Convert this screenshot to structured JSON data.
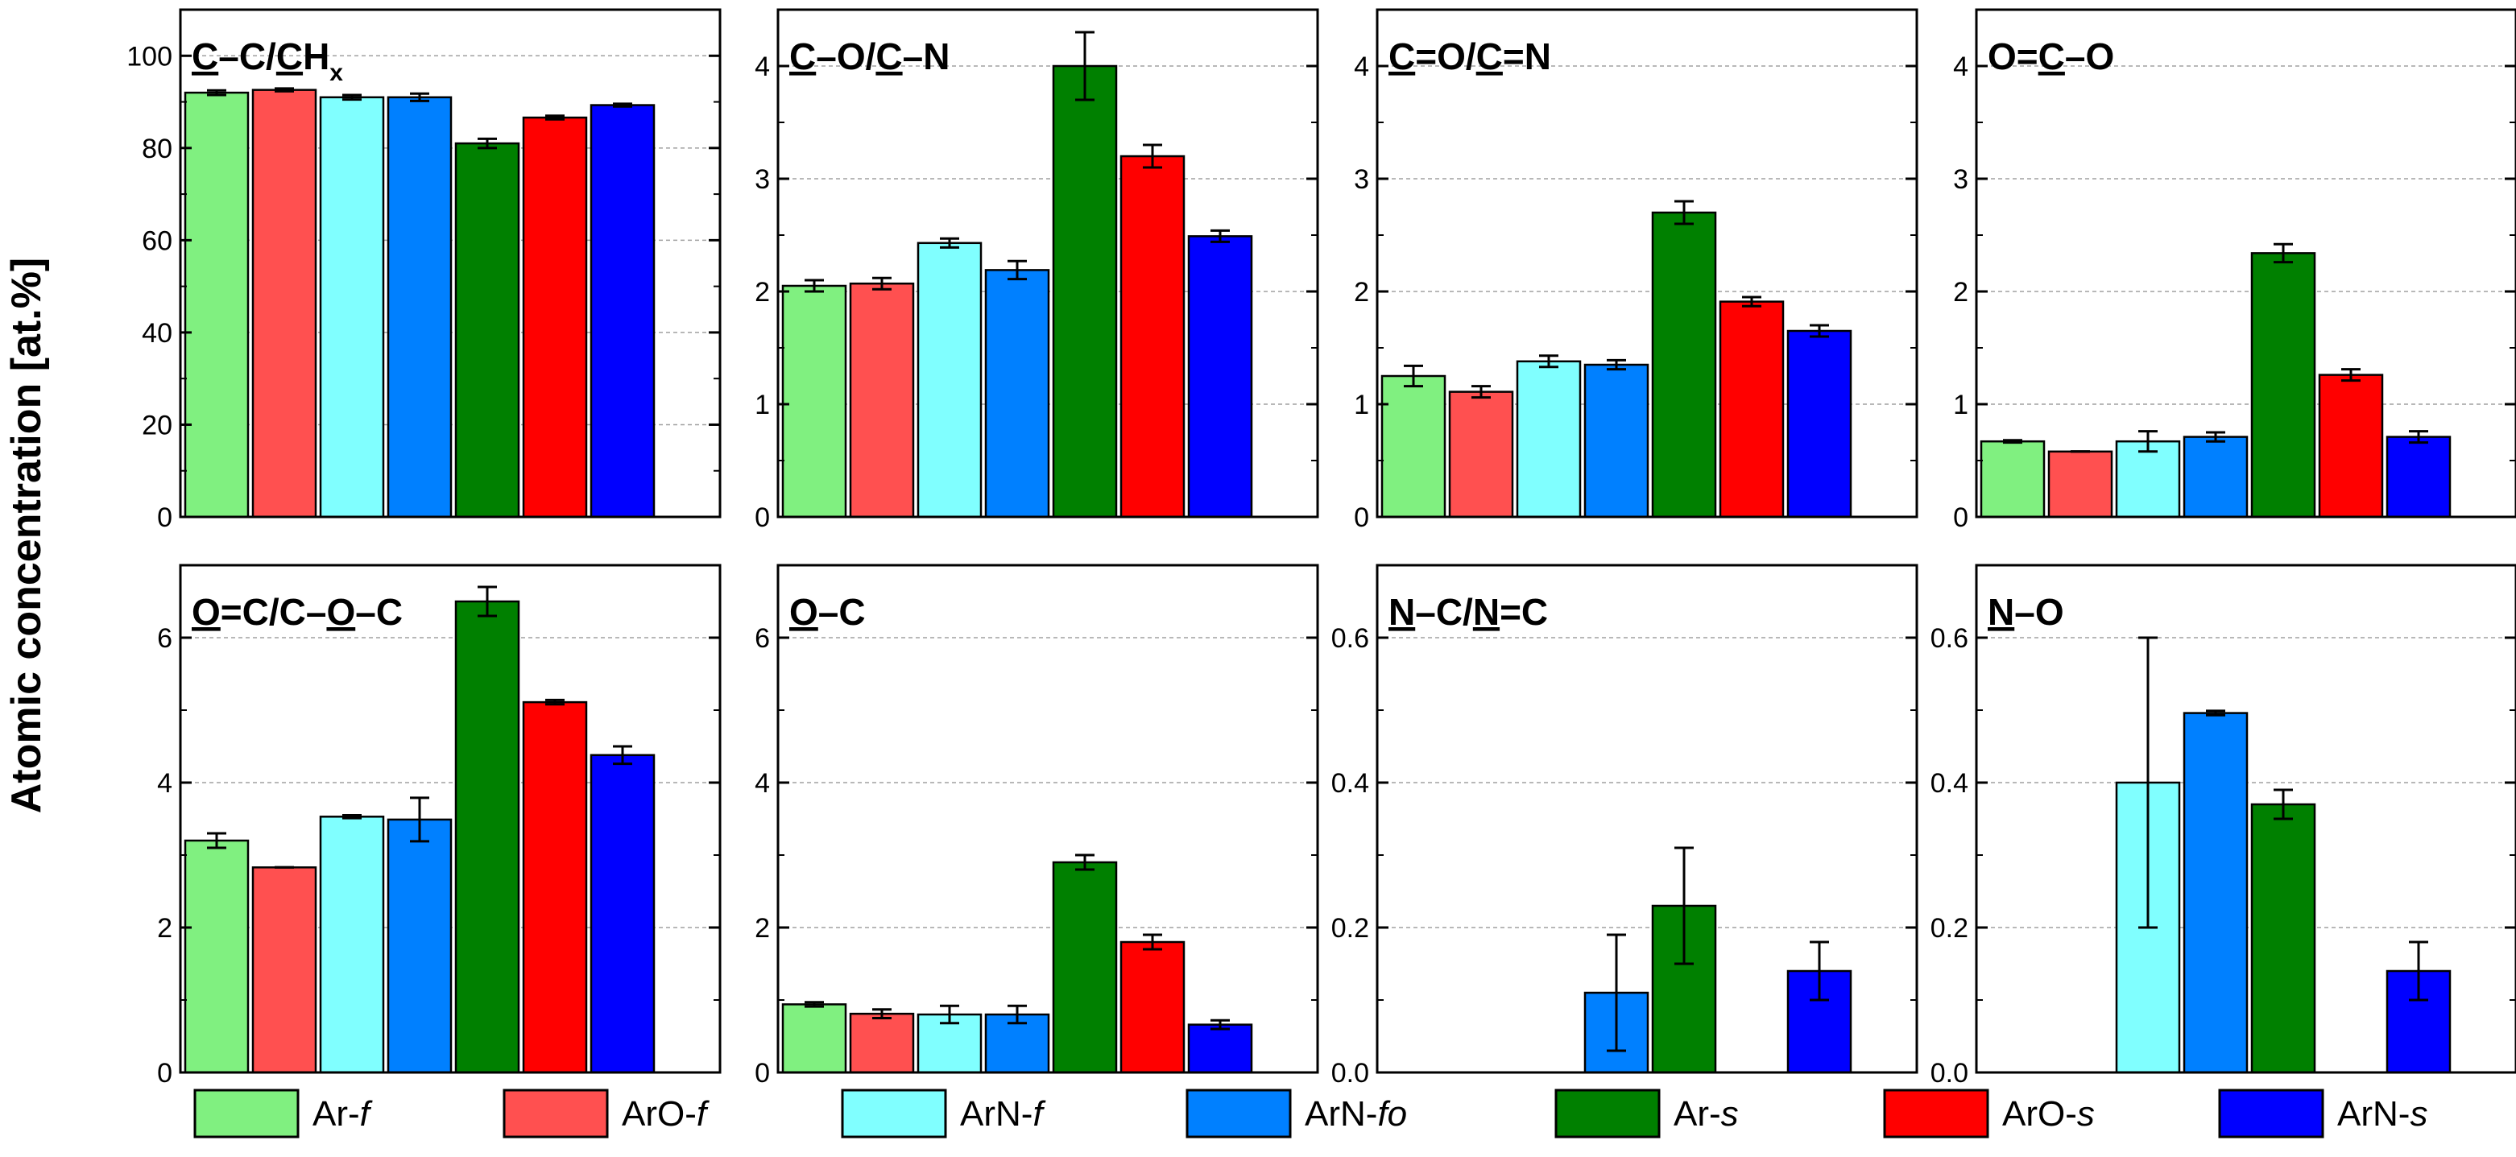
{
  "chart_data": {
    "type": "bar",
    "ylabel": "Atomic concentration [at.%]",
    "series": [
      {
        "name": "Ar-f",
        "prefix": "Ar-",
        "suffix": "f",
        "color": "#80f080"
      },
      {
        "name": "ArO-f",
        "prefix": "ArO-",
        "suffix": "f",
        "color": "#ff5050"
      },
      {
        "name": "ArN-f",
        "prefix": "ArN-",
        "suffix": "f",
        "color": "#80ffff"
      },
      {
        "name": "ArN-fo",
        "prefix": "ArN-",
        "suffix": "fo",
        "color": "#0080ff"
      },
      {
        "name": "Ar-s",
        "prefix": "Ar-",
        "suffix": "s",
        "color": "#008000"
      },
      {
        "name": "ArO-s",
        "prefix": "ArO-",
        "suffix": "s",
        "color": "#ff0000"
      },
      {
        "name": "ArN-s",
        "prefix": "ArN-",
        "suffix": "s",
        "color": "#0000ff"
      }
    ],
    "panels": [
      {
        "title": [
          {
            "t": "C",
            "u": true
          },
          {
            "t": "–C/"
          },
          {
            "t": "C",
            "u": true
          },
          {
            "t": "H"
          },
          {
            "t": "x",
            "sub": true
          }
        ],
        "ylim": [
          0,
          110
        ],
        "ticks": [
          0,
          20,
          40,
          60,
          80,
          100
        ],
        "tick_labels": [
          "0",
          "20",
          "40",
          "60",
          "80",
          "100"
        ],
        "values": [
          92,
          92.6,
          91,
          91,
          81,
          86.6,
          89.3
        ],
        "errors": [
          0.5,
          0.3,
          0.5,
          0.8,
          1.0,
          0.4,
          0.3
        ]
      },
      {
        "title": [
          {
            "t": "C",
            "u": true
          },
          {
            "t": "–O/"
          },
          {
            "t": "C",
            "u": true
          },
          {
            "t": "–N"
          }
        ],
        "ylim": [
          0,
          4.5
        ],
        "ticks": [
          0,
          1,
          2,
          3,
          4
        ],
        "tick_labels": [
          "0",
          "1",
          "2",
          "3",
          "4"
        ],
        "values": [
          2.05,
          2.07,
          2.43,
          2.19,
          4.0,
          3.2,
          2.49
        ],
        "errors": [
          0.05,
          0.05,
          0.04,
          0.08,
          0.3,
          0.1,
          0.05
        ]
      },
      {
        "title": [
          {
            "t": "C",
            "u": true
          },
          {
            "t": "=O/"
          },
          {
            "t": "C",
            "u": true
          },
          {
            "t": "=N"
          }
        ],
        "ylim": [
          0,
          4.5
        ],
        "ticks": [
          0,
          1,
          2,
          3,
          4
        ],
        "tick_labels": [
          "0",
          "1",
          "2",
          "3",
          "4"
        ],
        "values": [
          1.25,
          1.11,
          1.38,
          1.35,
          2.7,
          1.91,
          1.65
        ],
        "errors": [
          0.09,
          0.05,
          0.05,
          0.04,
          0.1,
          0.04,
          0.05
        ]
      },
      {
        "title": [
          {
            "t": "O="
          },
          {
            "t": "C",
            "u": true
          },
          {
            "t": "–O"
          }
        ],
        "ylim": [
          0,
          4.5
        ],
        "ticks": [
          0,
          1,
          2,
          3,
          4
        ],
        "tick_labels": [
          "0",
          "1",
          "2",
          "3",
          "4"
        ],
        "values": [
          0.67,
          0.58,
          0.67,
          0.71,
          2.34,
          1.26,
          0.71
        ],
        "errors": [
          0.01,
          0,
          0.09,
          0.04,
          0.08,
          0.05,
          0.05
        ]
      },
      {
        "title": [
          {
            "t": "O",
            "u": true
          },
          {
            "t": "=C/C–"
          },
          {
            "t": "O",
            "u": true
          },
          {
            "t": "–C"
          }
        ],
        "ylim": [
          0,
          7
        ],
        "ticks": [
          0,
          2,
          4,
          6
        ],
        "tick_labels": [
          "0",
          "2",
          "4",
          "6"
        ],
        "values": [
          3.2,
          2.83,
          3.53,
          3.49,
          6.5,
          5.11,
          4.38
        ],
        "errors": [
          0.1,
          0,
          0.02,
          0.3,
          0.2,
          0.03,
          0.12
        ]
      },
      {
        "title": [
          {
            "t": "O",
            "u": true
          },
          {
            "t": "–C"
          }
        ],
        "ylim": [
          0,
          7
        ],
        "ticks": [
          0,
          2,
          4,
          6
        ],
        "tick_labels": [
          "0",
          "2",
          "4",
          "6"
        ],
        "values": [
          0.94,
          0.81,
          0.8,
          0.8,
          2.9,
          1.8,
          0.66
        ],
        "errors": [
          0.03,
          0.06,
          0.12,
          0.12,
          0.1,
          0.1,
          0.06
        ]
      },
      {
        "title": [
          {
            "t": "N",
            "u": true
          },
          {
            "t": "–C/"
          },
          {
            "t": "N",
            "u": true
          },
          {
            "t": "=C"
          }
        ],
        "ylim": [
          0,
          0.7
        ],
        "ticks": [
          0,
          0.2,
          0.4,
          0.6
        ],
        "tick_labels": [
          "0.0",
          "0.2",
          "0.4",
          "0.6"
        ],
        "values": [
          null,
          null,
          null,
          0.11,
          0.23,
          null,
          0.14
        ],
        "errors": [
          null,
          null,
          null,
          0.08,
          0.08,
          null,
          0.04
        ]
      },
      {
        "title": [
          {
            "t": "N",
            "u": true
          },
          {
            "t": "–O"
          }
        ],
        "ylim": [
          0,
          0.7
        ],
        "ticks": [
          0,
          0.2,
          0.4,
          0.6
        ],
        "tick_labels": [
          "0.0",
          "0.2",
          "0.4",
          "0.6"
        ],
        "values": [
          null,
          null,
          0.4,
          0.496,
          0.37,
          null,
          0.14
        ],
        "errors": [
          null,
          null,
          0.2,
          0.003,
          0.02,
          null,
          0.04
        ]
      }
    ]
  }
}
